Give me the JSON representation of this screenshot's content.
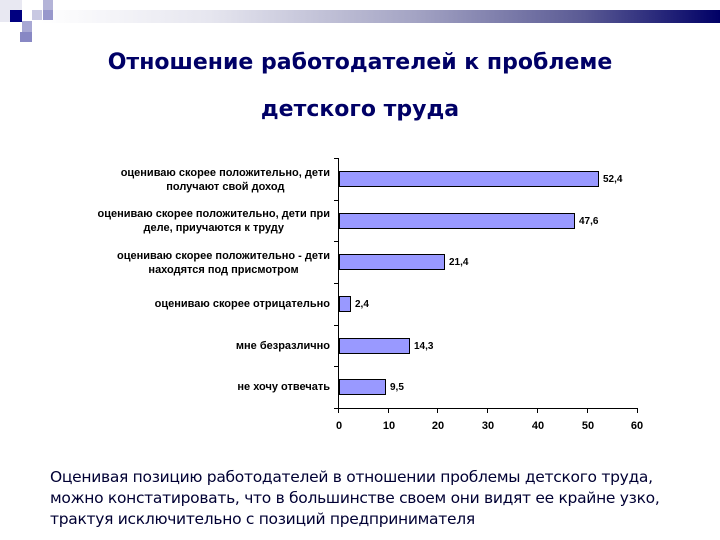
{
  "slide": {
    "title_line1": "Отношение работодателей к проблеме",
    "title_line2": "детского труда",
    "caption": "Оценивая позицию работодателей в отношении проблемы детского труда, можно констатировать, что в большинстве своем они видят ее крайне узко, трактуя исключительно с позиций предпринимателя",
    "colors": {
      "title": "#000066",
      "bar_fill": "#9999ff",
      "accent": "#000080"
    }
  },
  "chart_data": {
    "type": "bar",
    "orientation": "horizontal",
    "title": "Отношение работодателей к проблеме детского труда",
    "categories": [
      [
        "оцениваю скорее положительно, дети",
        "получают свой доход"
      ],
      [
        "оцениваю скорее положительно, дети при",
        "деле, приучаются к труду"
      ],
      [
        "оцениваю скорее положительно - дети",
        "находятся под присмотром"
      ],
      [
        "оцениваю скорее отрицательно"
      ],
      [
        "мне безразлично"
      ],
      [
        "не хочу отвечать"
      ]
    ],
    "values": [
      52.4,
      47.6,
      21.4,
      2.4,
      14.3,
      9.5
    ],
    "value_labels": [
      "52,4",
      "47,6",
      "21,4",
      "2,4",
      "14,3",
      "9,5"
    ],
    "xlabel": "",
    "ylabel": "",
    "xlim": [
      0,
      60
    ],
    "xticks": [
      "0",
      "10",
      "20",
      "30",
      "40",
      "50",
      "60"
    ],
    "grid": false,
    "legend": null
  }
}
